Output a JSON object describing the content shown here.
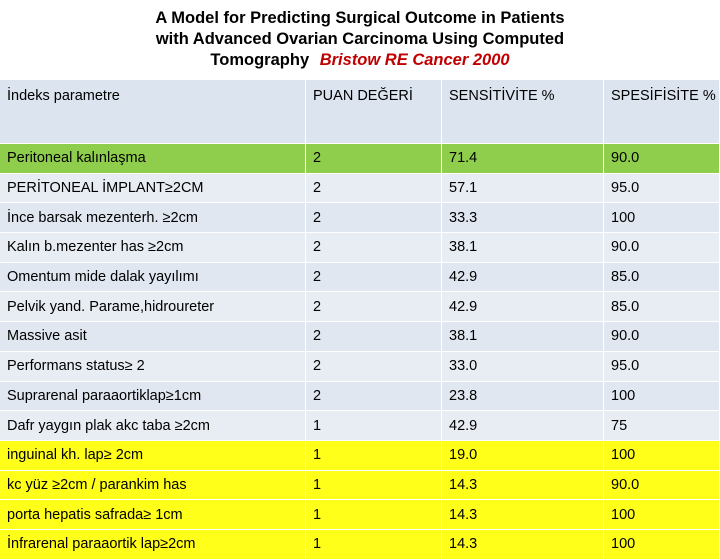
{
  "title": {
    "line1": "A Model for Predicting Surgical Outcome in Patients",
    "line2": "with Advanced Ovarian Carcinoma Using Computed",
    "line3": "Tomography",
    "reference": "Bristow RE  Cancer 2000"
  },
  "table": {
    "headers": [
      "İndeks parametre",
      "PUAN DEĞERİ",
      "SENSİTİVİTE %",
      "SPESİFİSİTE %"
    ],
    "rows": [
      {
        "param": "Peritoneal kalınlaşma",
        "score": "2",
        "sens": " 71.4",
        "spec": " 90.0"
      },
      {
        "param": "PERİTONEAL İMPLANT≥2CM",
        "score": "2",
        "sens": "57.1",
        "spec": "95.0"
      },
      {
        "param": "İnce barsak mezenterh. ≥2cm",
        "score": "2",
        "sens": "33.3",
        "spec": " 100"
      },
      {
        "param": "Kalın b.mezenter has ≥2cm",
        "score": "2",
        "sens": "38.1",
        "spec": "90.0"
      },
      {
        "param": "Omentum mide dalak yayılımı",
        "score": "2",
        "sens": "42.9",
        "spec": "85.0"
      },
      {
        "param": "Pelvik yand. Parame,hidroureter",
        "score": "2",
        "sens": "42.9",
        "spec": " 85.0"
      },
      {
        "param": "Massive asit",
        "score": "2",
        "sens": "38.1",
        "spec": "90.0"
      },
      {
        "param": "Performans status≥ 2",
        "score": "2",
        "sens": "33.0",
        "spec": "95.0"
      },
      {
        "param": "Suprarenal  paraaortiklap≥1cm",
        "score": "2",
        "sens": "23.8",
        "spec": " 100"
      },
      {
        "param": "Dafr yaygın plak akc taba ≥2cm",
        "score": "1",
        "sens": "42.9",
        "spec": "75"
      },
      {
        "param": " inguinal  kh. lap≥ 2cm",
        "score": "1",
        "sens": "19.0",
        "spec": "100"
      },
      {
        "param": " kc yüz ≥2cm / parankim has",
        "score": "1",
        "sens": "14.3",
        "spec": " 90.0"
      },
      {
        "param": " porta hepatis  safrada≥ 1cm",
        "score": "1",
        "sens": "14.3",
        "spec": "100"
      },
      {
        "param": "İnfrarenal paraaortik lap≥2cm",
        "score": "1",
        "sens": "14.3",
        "spec": "100"
      }
    ]
  }
}
